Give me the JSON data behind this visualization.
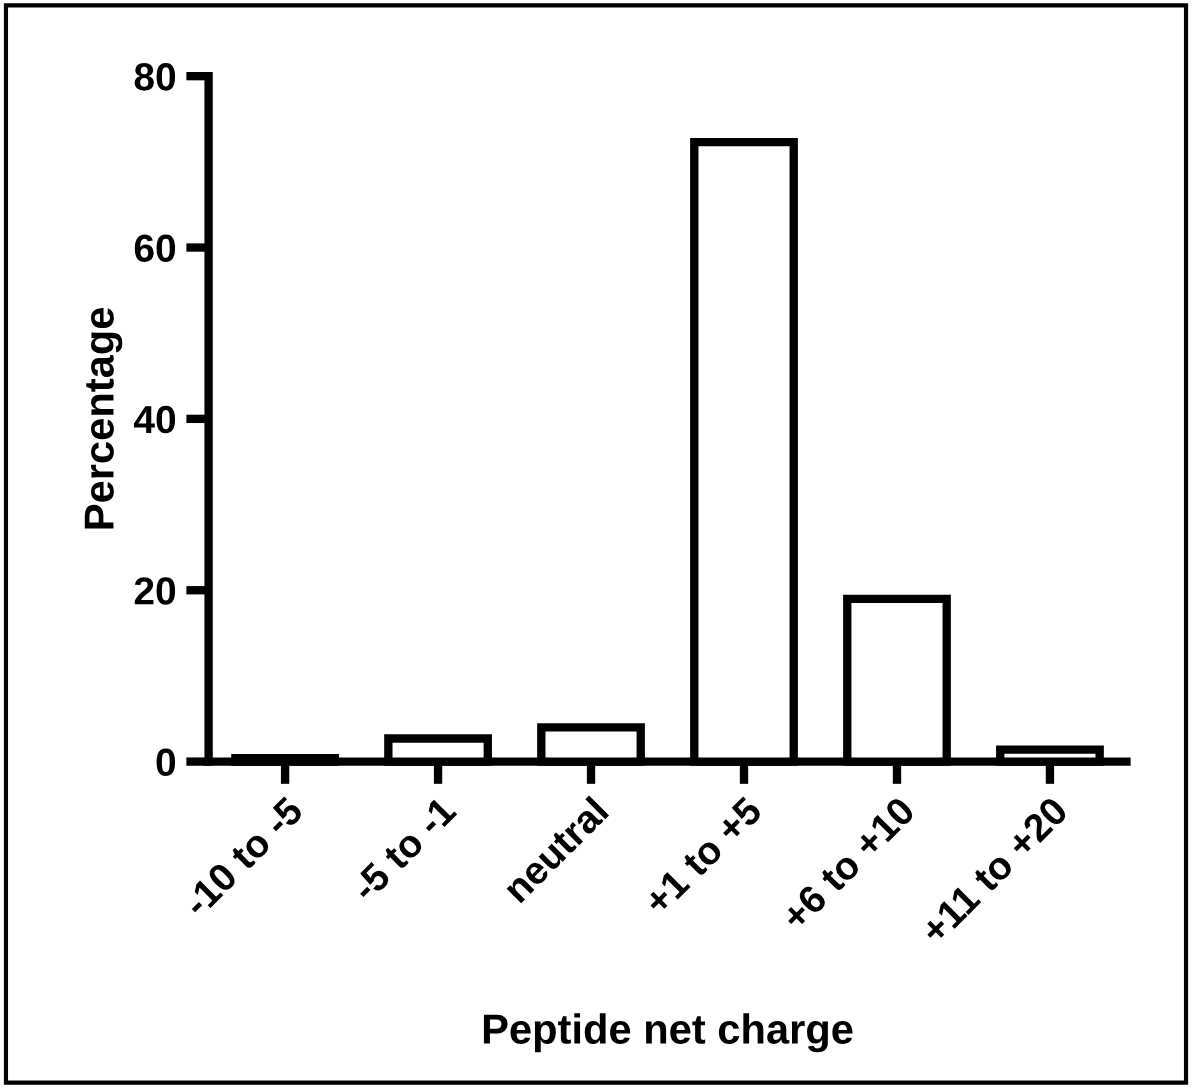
{
  "chart_data": {
    "type": "bar",
    "xlabel": "Peptide net charge",
    "ylabel": "Percentage",
    "categories": [
      "-10 to -5",
      "-5 to -1",
      "neutral",
      "+1 to +5",
      "+6 to +10",
      "+11 to +20"
    ],
    "values": [
      0.4,
      2.7,
      4.0,
      72.3,
      19.0,
      1.4
    ],
    "colors": [
      "#ffffff",
      "#ffffff",
      "#ffffff",
      "#ffffff",
      "#ffffff",
      "#ffffff"
    ],
    "ylim": [
      0,
      80
    ],
    "yticks": [
      0,
      20,
      40,
      60,
      80
    ],
    "grid": false,
    "legend": false
  }
}
